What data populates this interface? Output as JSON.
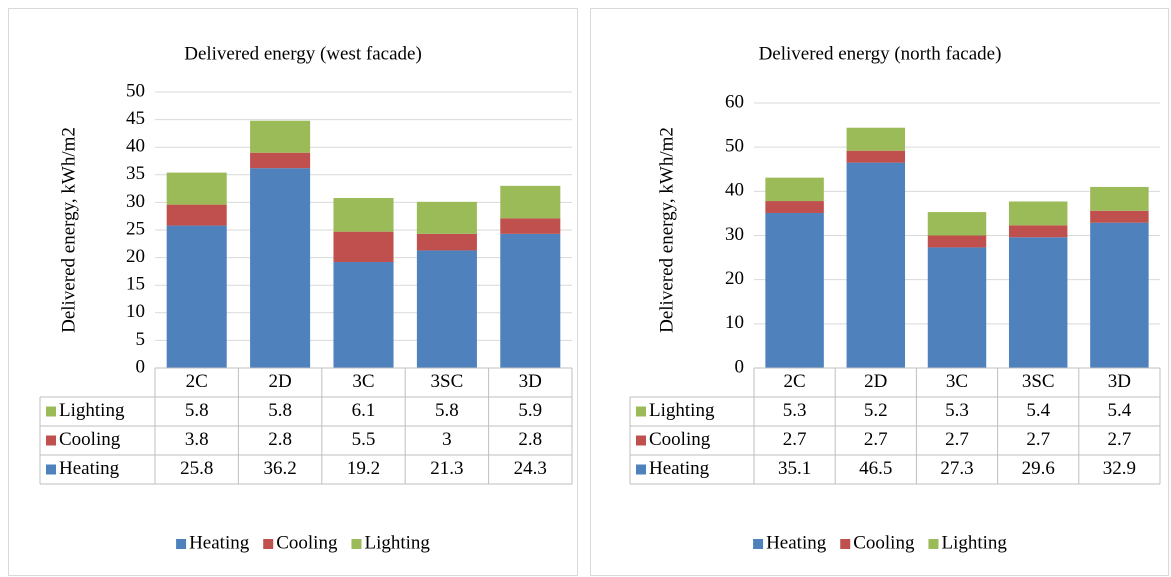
{
  "chart_data": [
    {
      "type": "bar",
      "stacked": true,
      "title": "Delivered energy (west facade)",
      "y_label": "Delivered energy, kWh/m2",
      "categories": [
        "2C",
        "2D",
        "3C",
        "3SC",
        "3D"
      ],
      "series": [
        {
          "name": "Heating",
          "color": "#4f81bd",
          "values": [
            25.8,
            36.2,
            19.2,
            21.3,
            24.3
          ]
        },
        {
          "name": "Cooling",
          "color": "#c0504d",
          "values": [
            3.8,
            2.8,
            5.5,
            3,
            2.8
          ]
        },
        {
          "name": "Lighting",
          "color": "#9bbb59",
          "values": [
            5.8,
            5.8,
            6.1,
            5.8,
            5.9
          ]
        }
      ],
      "ylim": [
        0,
        50
      ],
      "yticks": [
        0,
        5,
        10,
        15,
        20,
        25,
        30,
        35,
        40,
        45,
        50
      ],
      "grid": true,
      "legend": "bottom",
      "data_table": true
    },
    {
      "type": "bar",
      "stacked": true,
      "title": "Delivered energy (north facade)",
      "y_label": "Delivered energy, kWh/m2",
      "categories": [
        "2C",
        "2D",
        "3C",
        "3SC",
        "3D"
      ],
      "series": [
        {
          "name": "Heating",
          "color": "#4f81bd",
          "values": [
            35.1,
            46.5,
            27.3,
            29.6,
            32.9
          ]
        },
        {
          "name": "Cooling",
          "color": "#c0504d",
          "values": [
            2.7,
            2.7,
            2.7,
            2.7,
            2.7
          ]
        },
        {
          "name": "Lighting",
          "color": "#9bbb59",
          "values": [
            5.3,
            5.2,
            5.3,
            5.4,
            5.4
          ]
        }
      ],
      "ylim": [
        0,
        60
      ],
      "yticks": [
        0,
        10,
        20,
        30,
        40,
        50,
        60
      ],
      "grid": true,
      "legend": "bottom",
      "data_table": true
    }
  ]
}
